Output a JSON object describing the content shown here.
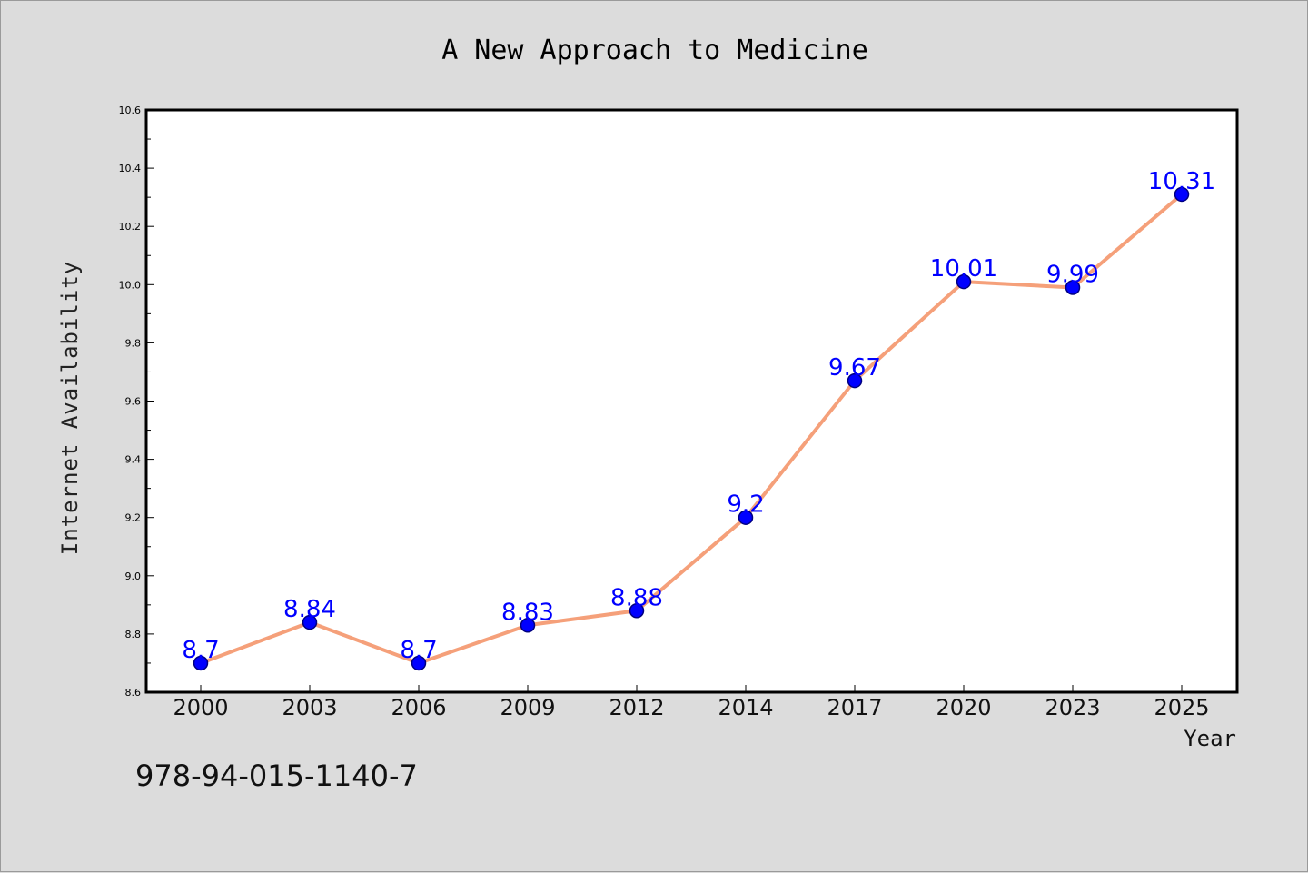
{
  "colors": {
    "background": "#dcdcdc",
    "plot_area": "#ffffff",
    "line": "#f5a07a",
    "marker_fill": "#0000ff",
    "marker_edge": "#000080",
    "data_label": "#0000ff"
  },
  "footer": {
    "isbn": "978-94-015-1140-7"
  },
  "chart_data": {
    "type": "line",
    "title": "A New Approach to Medicine",
    "xlabel": "Year",
    "ylabel": "Internet Availability",
    "categories": [
      "2000",
      "2003",
      "2006",
      "2009",
      "2012",
      "2014",
      "2017",
      "2020",
      "2023",
      "2025"
    ],
    "series": [
      {
        "values": [
          8.7,
          8.84,
          8.7,
          8.83,
          8.88,
          9.2,
          9.67,
          10.01,
          9.99,
          10.31
        ],
        "data_labels": [
          "8.7",
          "8.84",
          "8.7",
          "8.83",
          "8.88",
          "9.2",
          "9.67",
          "10.01",
          "9.99",
          "10.31"
        ]
      }
    ],
    "ylim": [
      8.6,
      10.6
    ],
    "yticks": [
      "8.6",
      "8.8",
      "9.0",
      "9.2",
      "9.4",
      "9.6",
      "9.8",
      "10.0",
      "10.2",
      "10.4",
      "10.6"
    ],
    "grid": false,
    "legend": "none"
  }
}
